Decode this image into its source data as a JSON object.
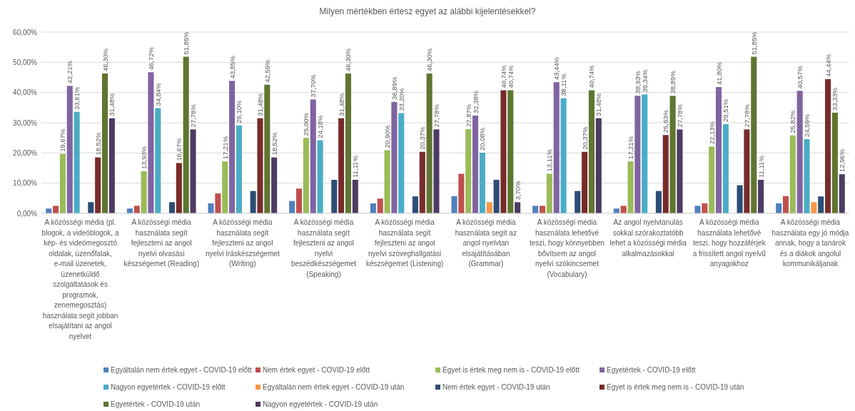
{
  "chart_data": {
    "type": "bar",
    "title": "Milyen mértékben értesz egyet az alábbi kijelentésekkel?",
    "categories": [
      "A közösségi média (pl. blogok, a videóblogok, a kép- és videómegosztó oldalak, üzenőfalak, e-mail üzenetek, üzenetküldő szolgáltatások és programok, zenemegosztás) használata segít jobban elsajátítani az angol nyelvet",
      "A közösségi média használata segít fejleszteni az angol nyelvi olvasási készségemet (Reading)",
      "A közösségi média használata segít fejleszteni az angol nyelvi íráskészségemet (Writing)",
      "A közösségi média használata segít fejleszteni az angol nyelvi beszédkészségemet (Speaking)",
      "A közösségi média használata segít fejleszteni az angol nyelvi szöveghallgatási készségemet (Listening)",
      "A közösségi média használata segít az angol nyelvtan elsajátításában (Grammar)",
      "A közösségi média használata lehetővé teszi, hogy könnyebben bővítsem az angol nyelvi szókincsemet (Vocabulary)",
      "Az angol nyelvtanulás sokkal szórakoztatóbb lehet a közösségi média alkalmazásokkal",
      "A közösségi média használata lehetővé teszi, hogy hozzáférjek a frissített angol nyelvű anyagokhoz",
      "A közösségi média használata egy jó módja annak, hogy a tanárok és a diákok angolul kommunikáljanak"
    ],
    "series": [
      {
        "name": "Egyáltalán nem értek egyet - COVID-19 előtt",
        "color": "#4f81bd",
        "values": [
          1.6,
          1.6,
          3.3,
          4.1,
          3.3,
          5.7,
          2.5,
          1.6,
          2.5,
          3.3
        ]
      },
      {
        "name": "Nem értek egyet - COVID-19 előtt",
        "color": "#c0504d",
        "values": [
          2.5,
          2.5,
          6.6,
          8.2,
          4.9,
          13.1,
          2.5,
          2.5,
          3.3,
          5.7
        ]
      },
      {
        "name": "Egyet is értek meg nem is - COVID-19 előtt",
        "color": "#9bbb59",
        "values": [
          19.67,
          13.93,
          17.21,
          25.0,
          20.9,
          27.87,
          13.11,
          17.21,
          22.13,
          25.82
        ],
        "value_labels": [
          "19,67%",
          "13,93%",
          "17,21%",
          "25,00%",
          "20,90%",
          "27,87%",
          "13,11%",
          "17,21%",
          "22,13%",
          "25,82%"
        ]
      },
      {
        "name": "Egyetértek - COVID-19 előtt",
        "color": "#8064a2",
        "values": [
          42.21,
          46.72,
          43.85,
          37.7,
          36.89,
          32.38,
          43.44,
          38.93,
          41.8,
          40.57
        ],
        "value_labels": [
          "42,21%",
          "46,72%",
          "43,85%",
          "37,70%",
          "36,89%",
          "32,38%",
          "43,44%",
          "38,93%",
          "41,80%",
          "40,57%"
        ]
      },
      {
        "name": "Nagyon egyetértek - COVID-19 előtt",
        "color": "#4bacc6",
        "values": [
          33.61,
          34.84,
          29.1,
          24.18,
          33.2,
          20.08,
          38.11,
          39.34,
          29.51,
          24.59
        ],
        "value_labels": [
          "33,61%",
          "34,84%",
          "29,10%",
          "24,18%",
          "33,20%",
          "20,08%",
          "38,11%",
          "39,34%",
          "29,51%",
          "24,59%"
        ]
      },
      {
        "name": "Egyáltalán nem értek egyet - COVID-19 után",
        "color": "#f79646",
        "values": [
          null,
          null,
          null,
          null,
          null,
          3.7,
          null,
          null,
          null,
          3.7
        ]
      },
      {
        "name": "Nem értek egyet - COVID-19 után",
        "color": "#2c4d75",
        "values": [
          3.7,
          3.7,
          7.4,
          11.1,
          5.6,
          11.1,
          7.4,
          7.4,
          9.3,
          5.6
        ]
      },
      {
        "name": "Egyet is értek meg nem is - COVID-19 után",
        "color": "#772c2a",
        "values": [
          18.52,
          16.67,
          31.48,
          31.48,
          20.37,
          40.74,
          20.37,
          25.93,
          27.78,
          44.44
        ],
        "value_labels": [
          "18,52%",
          "16,67%",
          "31,48%",
          "31,48%",
          "20,37%",
          "40,74%",
          "20,37%",
          "25,93%",
          "27,78%",
          "44,44%"
        ]
      },
      {
        "name": "Egyetértek - COVID-19 után",
        "color": "#5f7530",
        "values": [
          46.3,
          51.85,
          42.59,
          46.3,
          46.3,
          40.74,
          40.74,
          38.89,
          51.85,
          33.33
        ],
        "value_labels": [
          "46,30%",
          "51,85%",
          "42,59%",
          "46,30%",
          "46,30%",
          "40,74%",
          "40,74%",
          "38,89%",
          "51,85%",
          "33,33%"
        ]
      },
      {
        "name": "Nagyon egyetértek - COVID-19 után",
        "color": "#4d3b62",
        "values": [
          31.48,
          27.78,
          18.52,
          11.11,
          27.78,
          3.7,
          31.48,
          27.78,
          11.11,
          12.96
        ],
        "value_labels": [
          "31,48%",
          "27,78%",
          "18,52%",
          "11,11%",
          "27,78%",
          "3,70%",
          "31,48%",
          "27,78%",
          "11,11%",
          "12,96%"
        ]
      }
    ],
    "ylim": [
      0,
      60
    ],
    "yticks": [
      {
        "value": 0,
        "label": "0,00%"
      },
      {
        "value": 10,
        "label": "10,00%"
      },
      {
        "value": 20,
        "label": "20,00%"
      },
      {
        "value": 30,
        "label": "30,00%"
      },
      {
        "value": 40,
        "label": "40,00%"
      },
      {
        "value": 50,
        "label": "50,00%"
      },
      {
        "value": 60,
        "label": "60,00%"
      }
    ],
    "grid": "y",
    "legend": "bottom"
  }
}
